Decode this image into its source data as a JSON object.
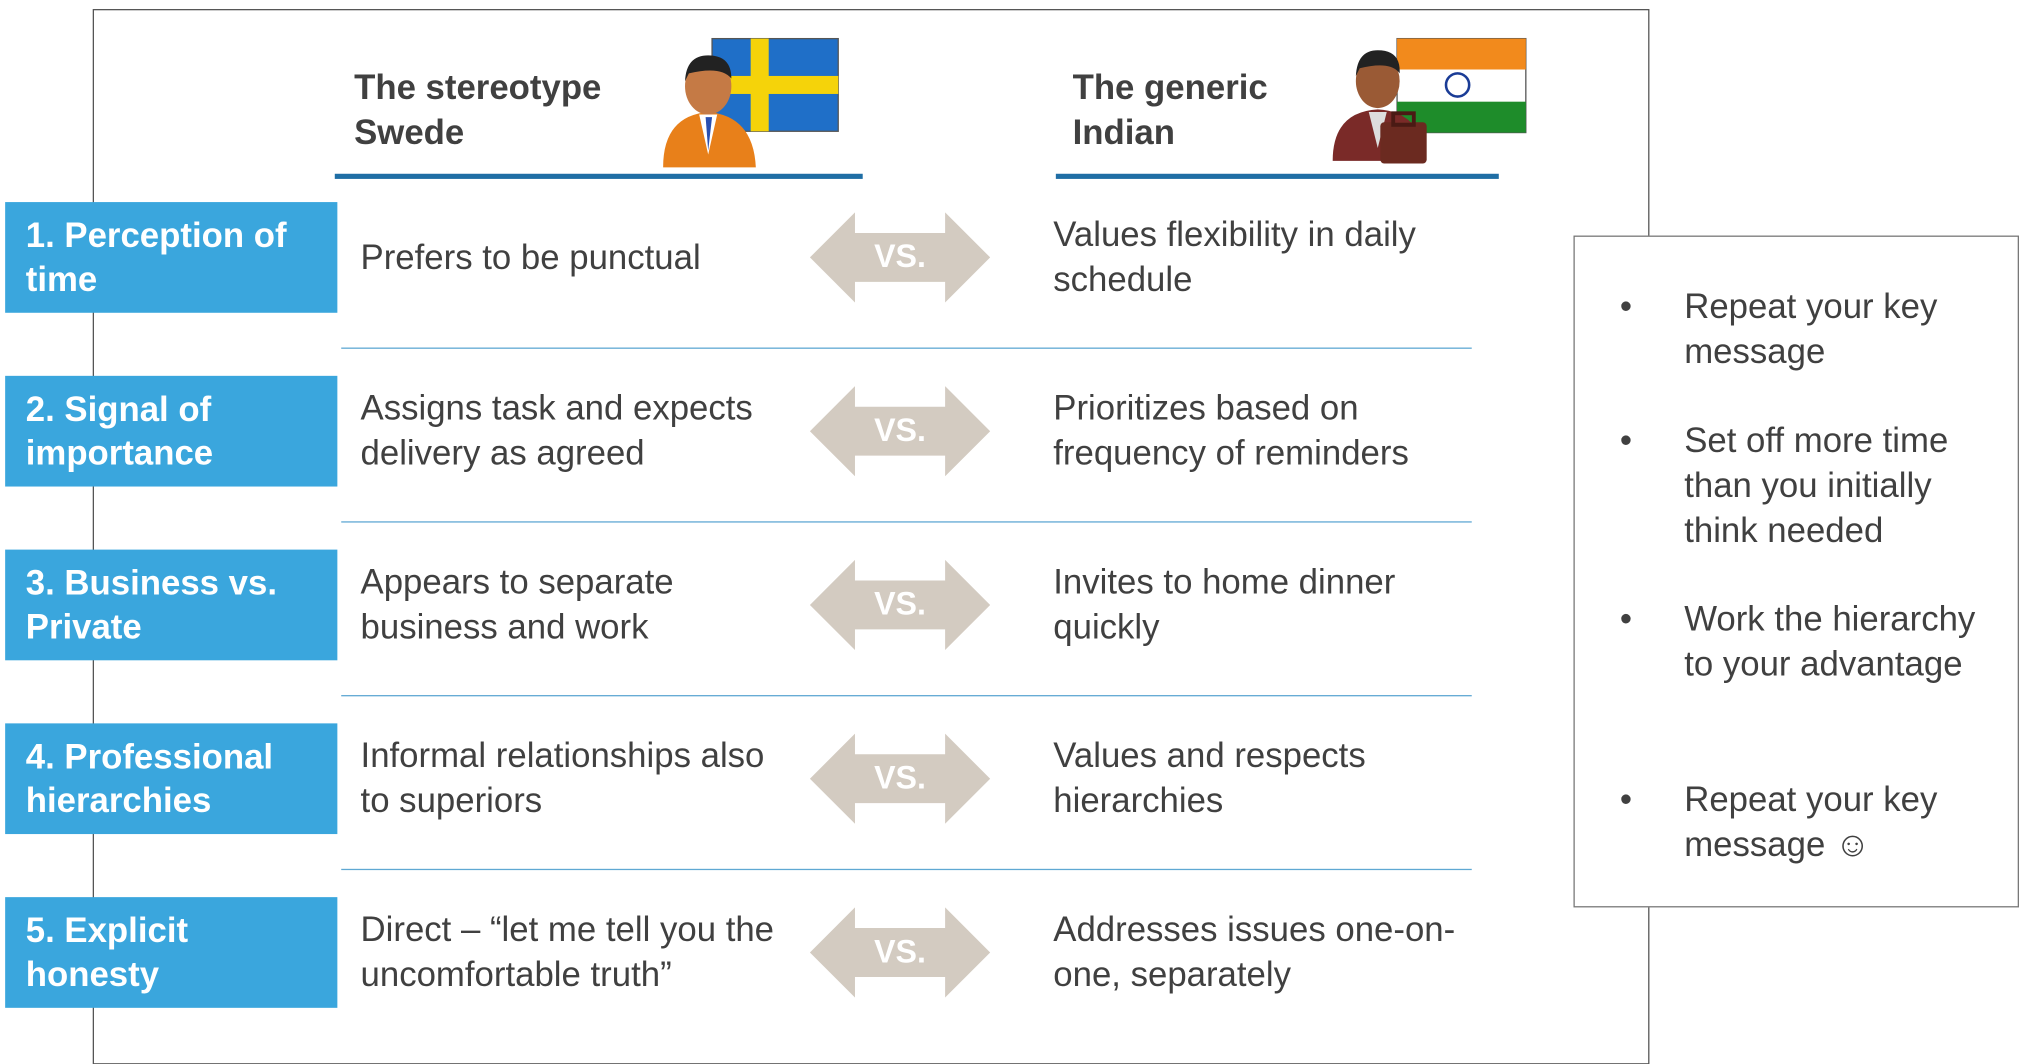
{
  "header": {
    "left_title": "The stereotype Swede",
    "right_title": "The generic Indian"
  },
  "rows": [
    {
      "label": "1. Perception of time",
      "left": "Prefers to be punctual",
      "vs": "VS.",
      "right": "Values flexibility in daily schedule"
    },
    {
      "label": "2. Signal of importance",
      "left": "Assigns task and expects delivery as agreed",
      "vs": "VS.",
      "right": "Prioritizes based on frequency of reminders"
    },
    {
      "label": "3. Business vs. Private",
      "left": "Appears to separate business and work",
      "vs": "VS.",
      "right": "Invites to home dinner quickly"
    },
    {
      "label": "4. Professional hierarchies",
      "left": "Informal relationships also to superiors",
      "vs": "VS.",
      "right": "Values and respects hierarchies"
    },
    {
      "label": "5. Explicit honesty",
      "left": "Direct – “let me tell you the uncomfortable truth”",
      "vs": "VS.",
      "right": "Addresses issues one-on-one, separately"
    }
  ],
  "tips": {
    "items": [
      "Repeat your key message",
      "Set off more time than you initially think needed",
      "Work the hierarchy to your advantage",
      "Repeat your key message ☺"
    ]
  }
}
